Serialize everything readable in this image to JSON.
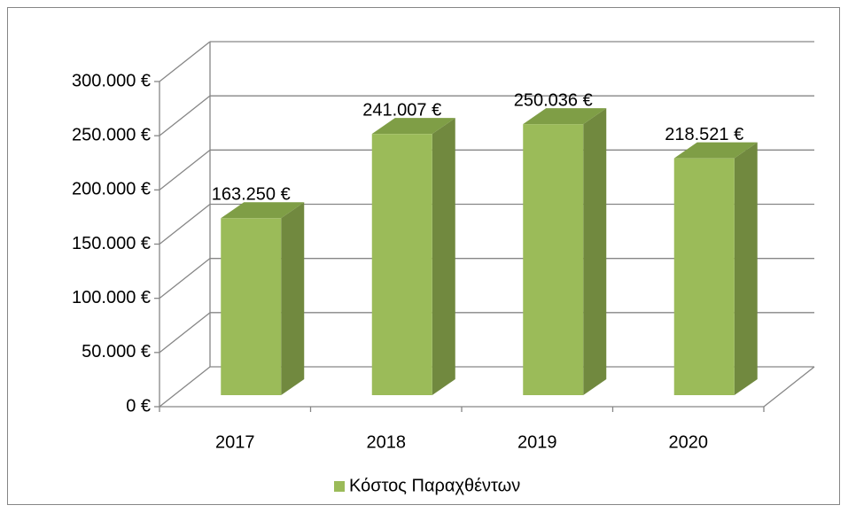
{
  "chart_data": {
    "type": "bar3d",
    "categories": [
      "2017",
      "2018",
      "2019",
      "2020"
    ],
    "series": [
      {
        "name": "Κόστος Παραχθέντων",
        "color": "#9bbb59",
        "values": [
          163250,
          241007,
          250036,
          218521
        ],
        "value_labels": [
          "163.250 €",
          "241.007 €",
          "250.036 €",
          "218.521 €"
        ]
      }
    ],
    "ylim": [
      0,
      300000
    ],
    "yticks": [
      {
        "value": 0,
        "label": "0 €"
      },
      {
        "value": 50000,
        "label": "50.000 €"
      },
      {
        "value": 100000,
        "label": "100.000 €"
      },
      {
        "value": 150000,
        "label": "150.000 €"
      },
      {
        "value": 200000,
        "label": "200.000 €"
      },
      {
        "value": 250000,
        "label": "250.000 €"
      },
      {
        "value": 300000,
        "label": "300.000 €"
      }
    ],
    "grid": true,
    "legend": "bottom"
  }
}
